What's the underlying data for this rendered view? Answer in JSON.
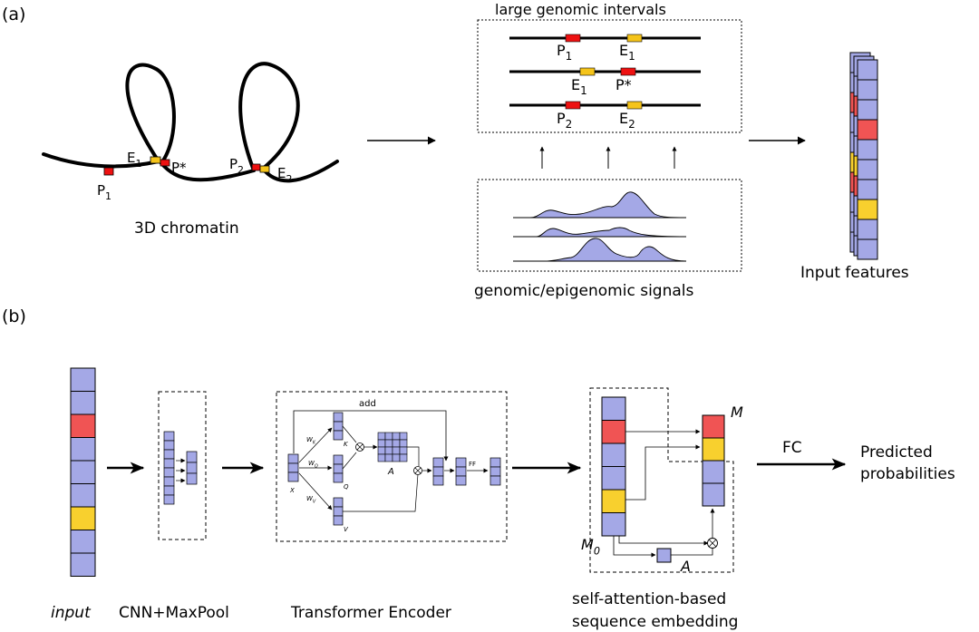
{
  "panel_a": {
    "label": "(a)",
    "chromatin": {
      "caption": "3D chromatin",
      "p1": "P",
      "p1_sub": "1",
      "e1": "E",
      "e1_sub": "1",
      "pstar": "P*",
      "p2": "P",
      "p2_sub": "2",
      "e2": "E",
      "e2_sub": "2"
    },
    "intervals": {
      "title": "large genomic intervals",
      "row1_p": "P",
      "row1_p_sub": "1",
      "row1_e": "E",
      "row1_e_sub": "1",
      "row2_e": "E",
      "row2_e_sub": "1",
      "row2_p": "P*",
      "row3_p": "P",
      "row3_p_sub": "2",
      "row3_e": "E",
      "row3_e_sub": "2"
    },
    "signals_caption": "genomic/epigenomic signals",
    "features_caption": "Input features"
  },
  "panel_b": {
    "label": "(b)",
    "input_caption": "input",
    "cnn_caption": "CNN+MaxPool",
    "transformer": {
      "caption": "Transformer Encoder",
      "add": "add",
      "wk": "W",
      "wk_sub": "K",
      "wq": "W",
      "wq_sub": "Q",
      "wv": "W",
      "wv_sub": "V",
      "k": "K",
      "q": "Q",
      "v": "V",
      "x": "X",
      "a": "A",
      "ff": "FF"
    },
    "embedding": {
      "caption_line1": "self-attention-based",
      "caption_line2": "sequence embedding",
      "m": "M",
      "m0": "M",
      "m0_sub": "0",
      "a": "A"
    },
    "fc": "FC",
    "output_line1": "Predicted",
    "output_line2": "probabilities"
  },
  "colors": {
    "cell": "#a4a8e6",
    "promoter": "#f05454",
    "enhancer": "#f8d02e",
    "promoter_mark": "#ee1111",
    "enhancer_mark": "#f5c41a"
  }
}
